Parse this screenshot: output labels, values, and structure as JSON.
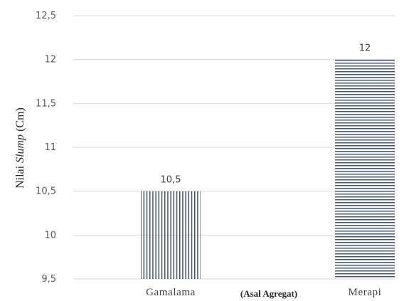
{
  "chart_data": {
    "type": "bar",
    "categories": [
      "Gamalama",
      "Merapi"
    ],
    "values": [
      10.5,
      12
    ],
    "data_labels": [
      "10,5",
      "12"
    ],
    "ylim": [
      9.5,
      12.5
    ],
    "yticks": [
      9.5,
      10,
      10.5,
      11,
      11.5,
      12,
      12.5
    ],
    "ytick_labels": [
      "9,5",
      "10",
      "10,5",
      "11",
      "11,5",
      "12",
      "12,5"
    ],
    "xlabel": "(Asal Agregat)",
    "ylabel_prefix": "Nilai ",
    "ylabel_italic": "Slump",
    "ylabel_suffix": " (Cm)",
    "grid": true,
    "legend": "none",
    "bar_patterns": [
      "vertical-stripes",
      "horizontal-stripes"
    ],
    "colors": {
      "bar": "#44546a",
      "grid": "#d9d9d9",
      "tick_text": "#595959"
    }
  }
}
